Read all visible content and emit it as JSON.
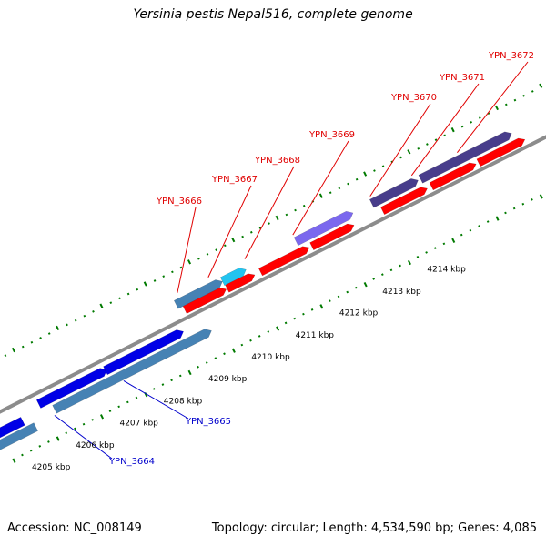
{
  "title": "Yersinia pestis Nepal516, complete genome",
  "accession": "Accession: NC_008149",
  "summary": "Topology: circular; Length: 4,534,590 bp; Genes: 4,085",
  "colors": {
    "backbone": "#8c8c8c",
    "forward_gene": "#ff0000",
    "label_red": "#e00000",
    "label_blue": "#0000cc",
    "tick_green": "#007a00",
    "steel_blue": "#4682b4",
    "deep_blue": "#0000e6",
    "cyan": "#22c4f0",
    "slate_blue": "#7b68ee",
    "dark_slate": "#483d8b"
  },
  "ticks": [
    {
      "label": "4205 kbp",
      "t": 3
    },
    {
      "label": "4206 kbp",
      "t": 57
    },
    {
      "label": "4207 kbp",
      "t": 111
    },
    {
      "label": "4208 kbp",
      "t": 165
    },
    {
      "label": "4209 kbp",
      "t": 220
    },
    {
      "label": "4210 kbp",
      "t": 273
    },
    {
      "label": "4211 kbp",
      "t": 327
    },
    {
      "label": "4212 kbp",
      "t": 381
    },
    {
      "label": "4213 kbp",
      "t": 434
    },
    {
      "label": "4214 kbp",
      "t": 489
    }
  ],
  "red_labels": [
    {
      "name": "YPN_3666",
      "t": 233
    },
    {
      "name": "YPN_3667",
      "t": 271
    },
    {
      "name": "YPN_3668",
      "t": 316
    },
    {
      "name": "YPN_3669",
      "t": 375
    },
    {
      "name": "YPN_3670",
      "t": 470
    },
    {
      "name": "YPN_3671",
      "t": 521
    },
    {
      "name": "YPN_3672",
      "t": 577
    }
  ],
  "blue_labels": [
    {
      "name": "YPN_3665",
      "t": 137
    },
    {
      "name": "YPN_3664",
      "t": 52
    }
  ]
}
